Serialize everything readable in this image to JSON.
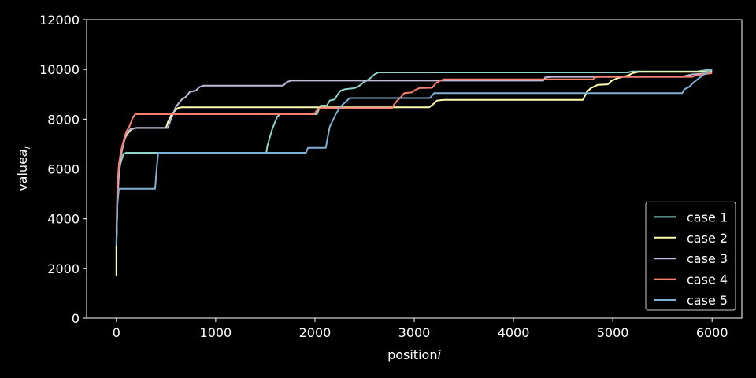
{
  "chart_data": {
    "type": "line",
    "title": "",
    "xlabel": "position",
    "xlabel_var": "i",
    "ylabel": "value",
    "ylabel_var": "a",
    "ylabel_sub": "i",
    "xlim": [
      -300,
      6300
    ],
    "ylim": [
      0,
      12000
    ],
    "xticks": [
      0,
      1000,
      2000,
      3000,
      4000,
      5000,
      6000
    ],
    "yticks": [
      0,
      2000,
      4000,
      6000,
      8000,
      10000,
      12000
    ],
    "grid": false,
    "legend_position": "lower-right",
    "background": "#000000",
    "series": [
      {
        "name": "case 1",
        "color": "#8dd3c7",
        "points": [
          [
            0,
            2800
          ],
          [
            10,
            4800
          ],
          [
            25,
            5800
          ],
          [
            40,
            6200
          ],
          [
            55,
            6400
          ],
          [
            70,
            6600
          ],
          [
            100,
            6650
          ],
          [
            1510,
            6650
          ],
          [
            1520,
            6900
          ],
          [
            1540,
            7200
          ],
          [
            1570,
            7600
          ],
          [
            1600,
            7900
          ],
          [
            1620,
            8100
          ],
          [
            1650,
            8200
          ],
          [
            2020,
            8200
          ],
          [
            2040,
            8400
          ],
          [
            2060,
            8550
          ],
          [
            2120,
            8550
          ],
          [
            2150,
            8750
          ],
          [
            2200,
            8800
          ],
          [
            2230,
            9000
          ],
          [
            2260,
            9150
          ],
          [
            2300,
            9200
          ],
          [
            2400,
            9250
          ],
          [
            2450,
            9350
          ],
          [
            2480,
            9450
          ],
          [
            2520,
            9550
          ],
          [
            2560,
            9650
          ],
          [
            2600,
            9800
          ],
          [
            2640,
            9880
          ],
          [
            5150,
            9880
          ],
          [
            5200,
            9920
          ],
          [
            5850,
            9920
          ],
          [
            5900,
            9950
          ],
          [
            6000,
            10000
          ]
        ]
      },
      {
        "name": "case 2",
        "color": "#ffffb3",
        "points": [
          [
            0,
            1700
          ],
          [
            0,
            2700
          ],
          [
            10,
            4900
          ],
          [
            25,
            5900
          ],
          [
            40,
            6500
          ],
          [
            60,
            6900
          ],
          [
            80,
            7200
          ],
          [
            110,
            7400
          ],
          [
            150,
            7600
          ],
          [
            200,
            7650
          ],
          [
            500,
            7650
          ],
          [
            520,
            7900
          ],
          [
            550,
            8150
          ],
          [
            580,
            8300
          ],
          [
            620,
            8450
          ],
          [
            660,
            8480
          ],
          [
            3150,
            8480
          ],
          [
            3190,
            8600
          ],
          [
            3230,
            8750
          ],
          [
            3300,
            8780
          ],
          [
            4700,
            8780
          ],
          [
            4720,
            8950
          ],
          [
            4740,
            9100
          ],
          [
            4780,
            9250
          ],
          [
            4850,
            9380
          ],
          [
            4950,
            9400
          ],
          [
            4990,
            9550
          ],
          [
            5050,
            9650
          ],
          [
            5100,
            9700
          ],
          [
            5150,
            9750
          ],
          [
            5200,
            9850
          ],
          [
            5260,
            9900
          ],
          [
            5960,
            9900
          ],
          [
            6000,
            9950
          ]
        ]
      },
      {
        "name": "case 3",
        "color": "#bebada",
        "points": [
          [
            0,
            3000
          ],
          [
            10,
            4700
          ],
          [
            25,
            5800
          ],
          [
            45,
            6500
          ],
          [
            70,
            7000
          ],
          [
            100,
            7400
          ],
          [
            140,
            7600
          ],
          [
            200,
            7650
          ],
          [
            520,
            7650
          ],
          [
            540,
            7900
          ],
          [
            560,
            8100
          ],
          [
            580,
            8300
          ],
          [
            600,
            8500
          ],
          [
            630,
            8650
          ],
          [
            660,
            8800
          ],
          [
            700,
            8900
          ],
          [
            740,
            9100
          ],
          [
            800,
            9150
          ],
          [
            840,
            9300
          ],
          [
            880,
            9350
          ],
          [
            1680,
            9350
          ],
          [
            1720,
            9500
          ],
          [
            1760,
            9550
          ],
          [
            4300,
            9550
          ],
          [
            4320,
            9680
          ],
          [
            4400,
            9700
          ],
          [
            5700,
            9700
          ],
          [
            5740,
            9750
          ],
          [
            5800,
            9800
          ],
          [
            6000,
            9850
          ]
        ]
      },
      {
        "name": "case 4",
        "color": "#fb8072",
        "points": [
          [
            0,
            3500
          ],
          [
            10,
            5300
          ],
          [
            25,
            6200
          ],
          [
            45,
            6700
          ],
          [
            70,
            7100
          ],
          [
            100,
            7500
          ],
          [
            130,
            7700
          ],
          [
            150,
            7900
          ],
          [
            170,
            8100
          ],
          [
            190,
            8200
          ],
          [
            1990,
            8200
          ],
          [
            2010,
            8300
          ],
          [
            2030,
            8420
          ],
          [
            2060,
            8450
          ],
          [
            2780,
            8450
          ],
          [
            2800,
            8600
          ],
          [
            2830,
            8750
          ],
          [
            2870,
            8900
          ],
          [
            2900,
            9050
          ],
          [
            2980,
            9080
          ],
          [
            3000,
            9150
          ],
          [
            3050,
            9250
          ],
          [
            3180,
            9260
          ],
          [
            3220,
            9450
          ],
          [
            3260,
            9550
          ],
          [
            3300,
            9600
          ],
          [
            4800,
            9600
          ],
          [
            4820,
            9680
          ],
          [
            4860,
            9700
          ],
          [
            5800,
            9700
          ],
          [
            5830,
            9750
          ],
          [
            5900,
            9800
          ],
          [
            6000,
            9850
          ]
        ]
      },
      {
        "name": "case 5",
        "color": "#80b1d3",
        "points": [
          [
            0,
            2900
          ],
          [
            10,
            4600
          ],
          [
            25,
            5200
          ],
          [
            390,
            5200
          ],
          [
            400,
            5700
          ],
          [
            410,
            6200
          ],
          [
            420,
            6650
          ],
          [
            1910,
            6650
          ],
          [
            1930,
            6850
          ],
          [
            2110,
            6850
          ],
          [
            2130,
            7300
          ],
          [
            2150,
            7700
          ],
          [
            2180,
            7950
          ],
          [
            2210,
            8200
          ],
          [
            2240,
            8400
          ],
          [
            2270,
            8550
          ],
          [
            2310,
            8700
          ],
          [
            2350,
            8850
          ],
          [
            3160,
            8850
          ],
          [
            3200,
            9050
          ],
          [
            5700,
            9050
          ],
          [
            5720,
            9200
          ],
          [
            5770,
            9300
          ],
          [
            5820,
            9500
          ],
          [
            5870,
            9650
          ],
          [
            5920,
            9800
          ],
          [
            6000,
            10000
          ]
        ]
      }
    ]
  }
}
